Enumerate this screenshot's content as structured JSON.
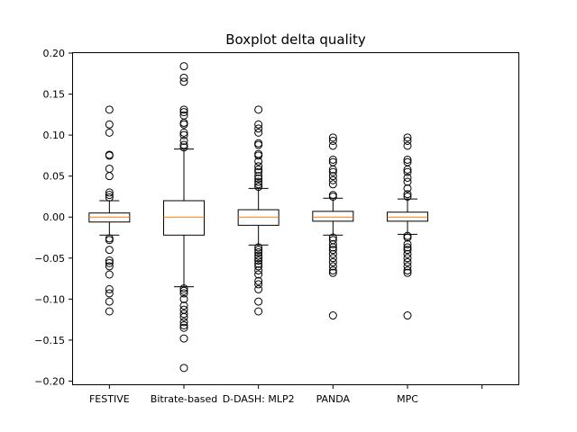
{
  "chart_data": {
    "type": "boxplot",
    "title": "Boxplot delta quality",
    "xlabel": "",
    "ylabel": "",
    "ylim": [
      -0.205,
      0.2
    ],
    "yticks": [
      0.2,
      0.15,
      0.1,
      0.05,
      0.0,
      -0.05,
      -0.1,
      -0.15,
      -0.2
    ],
    "ytick_labels": [
      "0.20",
      "0.15",
      "0.10",
      "0.05",
      "0.00",
      "−0.05",
      "−0.10",
      "−0.15",
      "−0.20"
    ],
    "x_positions": [
      1,
      2,
      3,
      4,
      5,
      6
    ],
    "xlim": [
      0.5,
      6.5
    ],
    "categories": [
      "FESTIVE",
      "Bitrate-based",
      "D-DASH: MLP2",
      "PANDA",
      "MPC",
      ""
    ],
    "grid": false,
    "colors": {
      "box": "#000000",
      "median": "#ff7f0e",
      "flier": "#000000"
    },
    "boxes": [
      {
        "label": "FESTIVE",
        "q1": -0.006,
        "median": 0.0,
        "q3": 0.005,
        "whisker_low": -0.022,
        "whisker_high": 0.02,
        "fliers": [
          0.131,
          0.113,
          0.103,
          0.076,
          0.075,
          0.059,
          0.05,
          0.03,
          0.027,
          0.024,
          -0.026,
          -0.028,
          -0.04,
          -0.053,
          -0.056,
          -0.06,
          -0.07,
          -0.088,
          -0.093,
          -0.103,
          -0.115
        ]
      },
      {
        "label": "Bitrate-based",
        "q1": -0.022,
        "median": 0.0,
        "q3": 0.02,
        "whisker_low": -0.085,
        "whisker_high": 0.083,
        "fliers": [
          0.184,
          0.17,
          0.165,
          0.131,
          0.128,
          0.124,
          0.115,
          0.113,
          0.103,
          0.1,
          0.093,
          0.088,
          0.085,
          -0.087,
          -0.09,
          -0.093,
          -0.1,
          -0.108,
          -0.113,
          -0.118,
          -0.122,
          -0.128,
          -0.132,
          -0.135,
          -0.148,
          -0.184
        ]
      },
      {
        "label": "D-DASH: MLP2",
        "q1": -0.01,
        "median": 0.0,
        "q3": 0.009,
        "whisker_low": -0.034,
        "whisker_high": 0.035,
        "fliers": [
          0.131,
          0.113,
          0.108,
          0.103,
          0.09,
          0.088,
          0.077,
          0.075,
          0.068,
          0.062,
          0.058,
          0.055,
          0.05,
          0.047,
          0.043,
          0.04,
          0.037,
          -0.037,
          -0.04,
          -0.043,
          -0.047,
          -0.05,
          -0.053,
          -0.057,
          -0.06,
          -0.065,
          -0.07,
          -0.078,
          -0.082,
          -0.088,
          -0.103,
          -0.115
        ]
      },
      {
        "label": "PANDA",
        "q1": -0.005,
        "median": 0.0,
        "q3": 0.007,
        "whisker_low": -0.022,
        "whisker_high": 0.023,
        "fliers": [
          0.097,
          0.093,
          0.087,
          0.07,
          0.067,
          0.058,
          0.055,
          0.05,
          0.045,
          0.04,
          0.027,
          0.025,
          -0.025,
          -0.028,
          -0.033,
          -0.037,
          -0.04,
          -0.045,
          -0.05,
          -0.055,
          -0.06,
          -0.065,
          -0.068,
          -0.12
        ]
      },
      {
        "label": "MPC",
        "q1": -0.005,
        "median": 0.0,
        "q3": 0.006,
        "whisker_low": -0.021,
        "whisker_high": 0.022,
        "fliers": [
          0.097,
          0.093,
          0.087,
          0.07,
          0.067,
          0.058,
          0.055,
          0.048,
          0.043,
          0.035,
          0.028,
          0.025,
          -0.023,
          -0.025,
          -0.033,
          -0.037,
          -0.04,
          -0.045,
          -0.05,
          -0.055,
          -0.06,
          -0.065,
          -0.068,
          -0.12
        ]
      }
    ]
  }
}
